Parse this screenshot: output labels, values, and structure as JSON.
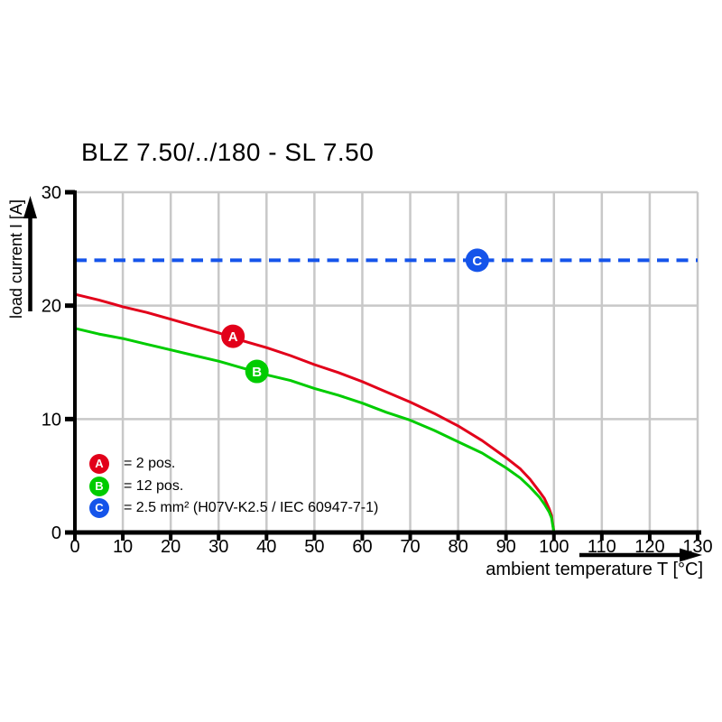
{
  "page": {
    "background": "#ffffff",
    "text_color": "#000000"
  },
  "chart_data": {
    "type": "line",
    "title": "BLZ 7.50/../180 - SL 7.50",
    "xlabel": "ambient temperature T [°C]",
    "ylabel": "load current I [A]",
    "xlim": [
      0,
      130
    ],
    "ylim": [
      0,
      30
    ],
    "xticks": [
      0,
      10,
      20,
      30,
      40,
      50,
      60,
      70,
      80,
      90,
      100,
      110,
      120,
      130
    ],
    "yticks": [
      0,
      10,
      20,
      30
    ],
    "grid": true,
    "grid_color": "#c8c8c8",
    "axis_color": "#000000",
    "legend_position": "inside bottom-left",
    "series": [
      {
        "name": "A",
        "legend_label": "= 2 pos.",
        "color": "#e2001a",
        "line_style": "solid",
        "marker": {
          "letter": "A",
          "x": 33,
          "y": 17.3
        },
        "points": [
          [
            0,
            21
          ],
          [
            5,
            20.5
          ],
          [
            10,
            19.9
          ],
          [
            15,
            19.4
          ],
          [
            20,
            18.8
          ],
          [
            25,
            18.2
          ],
          [
            30,
            17.6
          ],
          [
            35,
            16.9
          ],
          [
            40,
            16.3
          ],
          [
            45,
            15.6
          ],
          [
            50,
            14.8
          ],
          [
            55,
            14.1
          ],
          [
            60,
            13.3
          ],
          [
            65,
            12.4
          ],
          [
            70,
            11.5
          ],
          [
            75,
            10.5
          ],
          [
            80,
            9.4
          ],
          [
            85,
            8.1
          ],
          [
            90,
            6.6
          ],
          [
            93,
            5.6
          ],
          [
            95,
            4.7
          ],
          [
            97,
            3.6
          ],
          [
            98,
            3.0
          ],
          [
            99,
            2.1
          ],
          [
            99.5,
            1.5
          ],
          [
            100,
            0
          ]
        ]
      },
      {
        "name": "B",
        "legend_label": "= 12 pos.",
        "color": "#00cc00",
        "line_style": "solid",
        "marker": {
          "letter": "B",
          "x": 38,
          "y": 14.2
        },
        "points": [
          [
            0,
            18
          ],
          [
            5,
            17.5
          ],
          [
            10,
            17.1
          ],
          [
            15,
            16.6
          ],
          [
            20,
            16.1
          ],
          [
            25,
            15.6
          ],
          [
            30,
            15.1
          ],
          [
            35,
            14.5
          ],
          [
            40,
            13.9
          ],
          [
            45,
            13.4
          ],
          [
            50,
            12.7
          ],
          [
            55,
            12.1
          ],
          [
            60,
            11.4
          ],
          [
            65,
            10.6
          ],
          [
            70,
            9.9
          ],
          [
            75,
            9.0
          ],
          [
            80,
            8.0
          ],
          [
            85,
            7.0
          ],
          [
            90,
            5.7
          ],
          [
            93,
            4.8
          ],
          [
            95,
            4.0
          ],
          [
            97,
            3.1
          ],
          [
            98,
            2.5
          ],
          [
            99,
            1.8
          ],
          [
            99.5,
            1.3
          ],
          [
            100,
            0
          ]
        ]
      },
      {
        "name": "C",
        "legend_label": "= 2.5 mm² (H07V-K2.5 / IEC 60947-7-1)",
        "color": "#1554ea",
        "line_style": "dashed",
        "marker": {
          "letter": "C",
          "x": 84,
          "y": 24
        },
        "points": [
          [
            0,
            24
          ],
          [
            130,
            24
          ]
        ]
      }
    ]
  }
}
